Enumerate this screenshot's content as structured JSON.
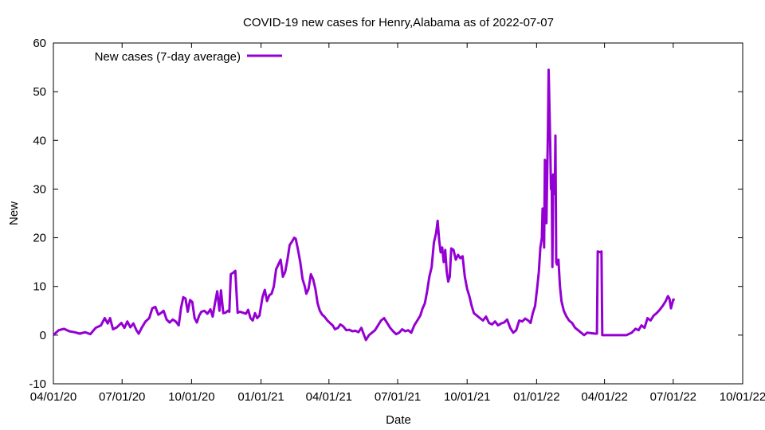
{
  "chart_data": {
    "type": "line",
    "title": "COVID-19 new cases for Henry,Alabama as of 2022-07-07",
    "xlabel": "Date",
    "ylabel": "New",
    "ylim": [
      -10,
      60
    ],
    "yticks": [
      -10,
      0,
      10,
      20,
      30,
      40,
      50,
      60
    ],
    "xlim": [
      "2020-04-01",
      "2022-10-01"
    ],
    "xticks": [
      {
        "date": "2020-04-01",
        "label": "04/01/20"
      },
      {
        "date": "2020-07-01",
        "label": "07/01/20"
      },
      {
        "date": "2020-10-01",
        "label": "10/01/20"
      },
      {
        "date": "2021-01-01",
        "label": "01/01/21"
      },
      {
        "date": "2021-04-01",
        "label": "04/01/21"
      },
      {
        "date": "2021-07-01",
        "label": "07/01/21"
      },
      {
        "date": "2021-10-01",
        "label": "10/01/21"
      },
      {
        "date": "2022-01-01",
        "label": "01/01/22"
      },
      {
        "date": "2022-04-01",
        "label": "04/01/22"
      },
      {
        "date": "2022-07-01",
        "label": "07/01/22"
      },
      {
        "date": "2022-10-01",
        "label": "10/01/22"
      }
    ],
    "grid": false,
    "legend_position": "top-left",
    "series": [
      {
        "name": "New cases (7-day average)",
        "color": "#9400d3",
        "points": [
          [
            "2020-04-01",
            0.0
          ],
          [
            "2020-04-08",
            1.0
          ],
          [
            "2020-04-15",
            1.3
          ],
          [
            "2020-04-22",
            0.8
          ],
          [
            "2020-04-29",
            0.6
          ],
          [
            "2020-05-06",
            0.3
          ],
          [
            "2020-05-13",
            0.6
          ],
          [
            "2020-05-20",
            0.2
          ],
          [
            "2020-05-27",
            1.5
          ],
          [
            "2020-06-03",
            2.0
          ],
          [
            "2020-06-08",
            3.5
          ],
          [
            "2020-06-12",
            2.4
          ],
          [
            "2020-06-15",
            3.5
          ],
          [
            "2020-06-19",
            1.2
          ],
          [
            "2020-06-24",
            1.6
          ],
          [
            "2020-06-30",
            2.5
          ],
          [
            "2020-07-04",
            1.5
          ],
          [
            "2020-07-08",
            2.8
          ],
          [
            "2020-07-12",
            1.6
          ],
          [
            "2020-07-16",
            2.4
          ],
          [
            "2020-07-20",
            1.0
          ],
          [
            "2020-07-23",
            0.3
          ],
          [
            "2020-07-27",
            1.5
          ],
          [
            "2020-08-01",
            2.8
          ],
          [
            "2020-08-06",
            3.5
          ],
          [
            "2020-08-10",
            5.5
          ],
          [
            "2020-08-14",
            5.8
          ],
          [
            "2020-08-18",
            4.2
          ],
          [
            "2020-08-22",
            4.6
          ],
          [
            "2020-08-25",
            5.0
          ],
          [
            "2020-08-29",
            3.2
          ],
          [
            "2020-09-02",
            2.6
          ],
          [
            "2020-09-06",
            3.2
          ],
          [
            "2020-09-10",
            2.8
          ],
          [
            "2020-09-14",
            2.0
          ],
          [
            "2020-09-17",
            5.5
          ],
          [
            "2020-09-20",
            7.8
          ],
          [
            "2020-09-23",
            7.5
          ],
          [
            "2020-09-26",
            4.8
          ],
          [
            "2020-09-29",
            7.2
          ],
          [
            "2020-10-02",
            6.8
          ],
          [
            "2020-10-05",
            3.5
          ],
          [
            "2020-10-08",
            2.6
          ],
          [
            "2020-10-11",
            4.0
          ],
          [
            "2020-10-14",
            4.8
          ],
          [
            "2020-10-18",
            5.0
          ],
          [
            "2020-10-22",
            4.4
          ],
          [
            "2020-10-26",
            5.3
          ],
          [
            "2020-10-29",
            3.8
          ],
          [
            "2020-11-01",
            6.5
          ],
          [
            "2020-11-04",
            9.0
          ],
          [
            "2020-11-07",
            5.0
          ],
          [
            "2020-11-09",
            9.2
          ],
          [
            "2020-11-12",
            4.5
          ],
          [
            "2020-11-15",
            4.6
          ],
          [
            "2020-11-18",
            5.0
          ],
          [
            "2020-11-20",
            4.8
          ],
          [
            "2020-11-22",
            12.5
          ],
          [
            "2020-11-25",
            12.8
          ],
          [
            "2020-11-28",
            13.2
          ],
          [
            "2020-12-01",
            4.6
          ],
          [
            "2020-12-04",
            4.8
          ],
          [
            "2020-12-08",
            4.6
          ],
          [
            "2020-12-12",
            4.4
          ],
          [
            "2020-12-15",
            5.2
          ],
          [
            "2020-12-18",
            3.5
          ],
          [
            "2020-12-21",
            3.0
          ],
          [
            "2020-12-24",
            4.5
          ],
          [
            "2020-12-27",
            3.5
          ],
          [
            "2020-12-30",
            4.0
          ],
          [
            "2021-01-03",
            7.8
          ],
          [
            "2021-01-06",
            9.3
          ],
          [
            "2021-01-09",
            7.0
          ],
          [
            "2021-01-12",
            8.2
          ],
          [
            "2021-01-15",
            8.5
          ],
          [
            "2021-01-18",
            10.0
          ],
          [
            "2021-01-21",
            13.5
          ],
          [
            "2021-01-24",
            14.5
          ],
          [
            "2021-01-27",
            15.5
          ],
          [
            "2021-01-30",
            12.0
          ],
          [
            "2021-02-02",
            13.0
          ],
          [
            "2021-02-05",
            15.5
          ],
          [
            "2021-02-08",
            18.5
          ],
          [
            "2021-02-11",
            19.2
          ],
          [
            "2021-02-14",
            20.0
          ],
          [
            "2021-02-16",
            19.8
          ],
          [
            "2021-02-19",
            17.5
          ],
          [
            "2021-02-22",
            15.0
          ],
          [
            "2021-02-25",
            11.5
          ],
          [
            "2021-02-28",
            10.0
          ],
          [
            "2021-03-02",
            8.5
          ],
          [
            "2021-03-05",
            9.5
          ],
          [
            "2021-03-08",
            12.5
          ],
          [
            "2021-03-11",
            11.5
          ],
          [
            "2021-03-14",
            9.5
          ],
          [
            "2021-03-17",
            6.5
          ],
          [
            "2021-03-20",
            5.0
          ],
          [
            "2021-03-23",
            4.2
          ],
          [
            "2021-03-26",
            3.8
          ],
          [
            "2021-03-30",
            3.0
          ],
          [
            "2021-04-03",
            2.4
          ],
          [
            "2021-04-06",
            2.0
          ],
          [
            "2021-04-09",
            1.2
          ],
          [
            "2021-04-13",
            1.5
          ],
          [
            "2021-04-16",
            2.2
          ],
          [
            "2021-04-20",
            1.8
          ],
          [
            "2021-04-24",
            1.0
          ],
          [
            "2021-04-28",
            1.1
          ],
          [
            "2021-05-02",
            0.8
          ],
          [
            "2021-05-06",
            0.9
          ],
          [
            "2021-05-10",
            0.6
          ],
          [
            "2021-05-14",
            1.5
          ],
          [
            "2021-05-17",
            0.2
          ],
          [
            "2021-05-20",
            -1.0
          ],
          [
            "2021-05-24",
            0.0
          ],
          [
            "2021-05-28",
            0.5
          ],
          [
            "2021-06-01",
            1.0
          ],
          [
            "2021-06-05",
            2.0
          ],
          [
            "2021-06-09",
            3.0
          ],
          [
            "2021-06-13",
            3.5
          ],
          [
            "2021-06-17",
            2.5
          ],
          [
            "2021-06-21",
            1.5
          ],
          [
            "2021-06-25",
            0.8
          ],
          [
            "2021-06-29",
            0.2
          ],
          [
            "2021-07-03",
            0.5
          ],
          [
            "2021-07-07",
            1.2
          ],
          [
            "2021-07-11",
            0.8
          ],
          [
            "2021-07-15",
            1.0
          ],
          [
            "2021-07-19",
            0.5
          ],
          [
            "2021-07-23",
            2.0
          ],
          [
            "2021-07-27",
            3.0
          ],
          [
            "2021-07-31",
            4.0
          ],
          [
            "2021-08-03",
            5.5
          ],
          [
            "2021-08-06",
            6.5
          ],
          [
            "2021-08-09",
            9.0
          ],
          [
            "2021-08-12",
            12.0
          ],
          [
            "2021-08-15",
            14.0
          ],
          [
            "2021-08-18",
            19.0
          ],
          [
            "2021-08-21",
            21.0
          ],
          [
            "2021-08-23",
            23.5
          ],
          [
            "2021-08-25",
            19.5
          ],
          [
            "2021-08-27",
            17.0
          ],
          [
            "2021-08-29",
            18.0
          ],
          [
            "2021-08-31",
            15.0
          ],
          [
            "2021-09-02",
            17.5
          ],
          [
            "2021-09-04",
            13.0
          ],
          [
            "2021-09-06",
            11.0
          ],
          [
            "2021-09-08",
            12.0
          ],
          [
            "2021-09-10",
            17.8
          ],
          [
            "2021-09-13",
            17.5
          ],
          [
            "2021-09-16",
            15.5
          ],
          [
            "2021-09-19",
            16.5
          ],
          [
            "2021-09-22",
            15.8
          ],
          [
            "2021-09-25",
            16.2
          ],
          [
            "2021-09-28",
            12.0
          ],
          [
            "2021-10-01",
            9.5
          ],
          [
            "2021-10-04",
            8.0
          ],
          [
            "2021-10-07",
            6.0
          ],
          [
            "2021-10-10",
            4.5
          ],
          [
            "2021-10-14",
            4.0
          ],
          [
            "2021-10-18",
            3.5
          ],
          [
            "2021-10-22",
            3.0
          ],
          [
            "2021-10-26",
            3.8
          ],
          [
            "2021-10-30",
            2.5
          ],
          [
            "2021-11-03",
            2.2
          ],
          [
            "2021-11-07",
            2.8
          ],
          [
            "2021-11-11",
            2.0
          ],
          [
            "2021-11-15",
            2.4
          ],
          [
            "2021-11-19",
            2.6
          ],
          [
            "2021-11-23",
            3.2
          ],
          [
            "2021-11-27",
            1.5
          ],
          [
            "2021-12-01",
            0.5
          ],
          [
            "2021-12-05",
            1.0
          ],
          [
            "2021-12-09",
            3.0
          ],
          [
            "2021-12-13",
            2.8
          ],
          [
            "2021-12-17",
            3.4
          ],
          [
            "2021-12-21",
            3.0
          ],
          [
            "2021-12-24",
            2.5
          ],
          [
            "2021-12-27",
            4.5
          ],
          [
            "2021-12-30",
            6.0
          ],
          [
            "2022-01-02",
            10.0
          ],
          [
            "2022-01-04",
            13.0
          ],
          [
            "2022-01-06",
            18.0
          ],
          [
            "2022-01-08",
            20.0
          ],
          [
            "2022-01-09",
            26.0
          ],
          [
            "2022-01-10",
            23.0
          ],
          [
            "2022-01-11",
            18.0
          ],
          [
            "2022-01-12",
            36.0
          ],
          [
            "2022-01-13",
            35.0
          ],
          [
            "2022-01-14",
            23.0
          ],
          [
            "2022-01-16",
            42.0
          ],
          [
            "2022-01-17",
            54.5
          ],
          [
            "2022-01-19",
            40.0
          ],
          [
            "2022-01-20",
            30.0
          ],
          [
            "2022-01-21",
            32.5
          ],
          [
            "2022-01-22",
            14.0
          ],
          [
            "2022-01-23",
            33.0
          ],
          [
            "2022-01-25",
            29.0
          ],
          [
            "2022-01-26",
            41.0
          ],
          [
            "2022-01-27",
            15.0
          ],
          [
            "2022-01-28",
            14.5
          ],
          [
            "2022-01-30",
            15.5
          ],
          [
            "2022-02-01",
            10.0
          ],
          [
            "2022-02-03",
            7.0
          ],
          [
            "2022-02-06",
            5.0
          ],
          [
            "2022-02-09",
            4.0
          ],
          [
            "2022-02-13",
            3.0
          ],
          [
            "2022-02-17",
            2.5
          ],
          [
            "2022-02-21",
            1.5
          ],
          [
            "2022-02-25",
            1.0
          ],
          [
            "2022-03-01",
            0.5
          ],
          [
            "2022-03-05",
            0.0
          ],
          [
            "2022-03-09",
            0.5
          ],
          [
            "2022-03-14",
            0.4
          ],
          [
            "2022-03-20",
            0.3
          ],
          [
            "2022-03-22",
            0.3
          ],
          [
            "2022-03-23",
            17.2
          ],
          [
            "2022-03-27",
            17.0
          ],
          [
            "2022-03-28",
            17.2
          ],
          [
            "2022-03-29",
            0.0
          ],
          [
            "2022-04-08",
            0.0
          ],
          [
            "2022-04-20",
            0.0
          ],
          [
            "2022-04-30",
            0.0
          ],
          [
            "2022-05-07",
            0.5
          ],
          [
            "2022-05-12",
            1.3
          ],
          [
            "2022-05-16",
            1.0
          ],
          [
            "2022-05-20",
            2.0
          ],
          [
            "2022-05-24",
            1.5
          ],
          [
            "2022-05-28",
            3.5
          ],
          [
            "2022-06-01",
            3.0
          ],
          [
            "2022-06-05",
            4.0
          ],
          [
            "2022-06-09",
            4.5
          ],
          [
            "2022-06-13",
            5.2
          ],
          [
            "2022-06-17",
            6.0
          ],
          [
            "2022-06-21",
            7.0
          ],
          [
            "2022-06-24",
            8.0
          ],
          [
            "2022-06-26",
            7.5
          ],
          [
            "2022-06-28",
            5.5
          ],
          [
            "2022-07-01",
            7.3
          ],
          [
            "2022-07-03",
            7.3
          ]
        ]
      }
    ]
  }
}
